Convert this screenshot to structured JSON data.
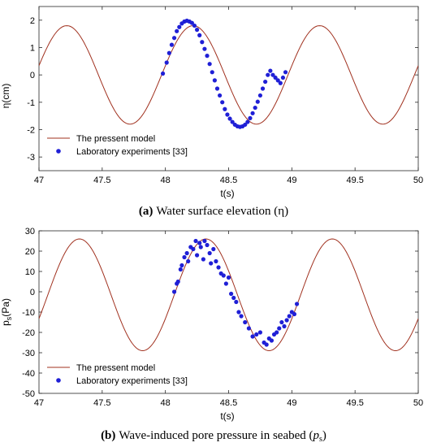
{
  "chart_data": [
    {
      "type": "line",
      "caption_prefix": "(a)",
      "caption_text": "Water surface elevation (η)",
      "xlabel": "t(s)",
      "ylabel": "η(cm)",
      "xlim": [
        47,
        50
      ],
      "ylim": [
        -3.5,
        2.5
      ],
      "xticks": [
        "47",
        "47.5",
        "48",
        "48.5",
        "49",
        "49.5",
        "50"
      ],
      "yticks": [
        "-3",
        "-2",
        "-1",
        "0",
        "1",
        "2"
      ],
      "xtick_values": [
        47,
        47.5,
        48,
        48.5,
        49,
        49.5,
        50
      ],
      "ytick_values": [
        -3,
        -2,
        -1,
        0,
        1,
        2
      ],
      "legend_placement": "bottom-left",
      "series": [
        {
          "name": "The pressent model",
          "kind": "line",
          "color": "#a0301e",
          "model": {
            "mean": 0.0,
            "amplitude": 1.8,
            "period": 1.0,
            "crest_time": 47.22
          }
        },
        {
          "name": "Laboratory experiments [33]",
          "kind": "scatter",
          "color": "#1f1fd6",
          "x": [
            47.98,
            48.01,
            48.03,
            48.05,
            48.07,
            48.09,
            48.11,
            48.13,
            48.15,
            48.17,
            48.19,
            48.21,
            48.23,
            48.25,
            48.27,
            48.29,
            48.31,
            48.33,
            48.35,
            48.37,
            48.39,
            48.41,
            48.43,
            48.45,
            48.47,
            48.49,
            48.51,
            48.53,
            48.55,
            48.57,
            48.59,
            48.61,
            48.63,
            48.65,
            48.67,
            48.69,
            48.71,
            48.73,
            48.75,
            48.77,
            48.79,
            48.81,
            48.83,
            48.85,
            48.87,
            48.89,
            48.91,
            48.93,
            48.95
          ],
          "y": [
            0.05,
            0.45,
            0.8,
            1.1,
            1.35,
            1.6,
            1.75,
            1.88,
            1.95,
            1.98,
            1.95,
            1.9,
            1.8,
            1.65,
            1.45,
            1.2,
            0.95,
            0.7,
            0.4,
            0.1,
            -0.2,
            -0.5,
            -0.75,
            -1.0,
            -1.25,
            -1.45,
            -1.6,
            -1.72,
            -1.82,
            -1.88,
            -1.9,
            -1.88,
            -1.82,
            -1.72,
            -1.58,
            -1.4,
            -1.2,
            -0.98,
            -0.75,
            -0.5,
            -0.25,
            0.0,
            0.15,
            0.0,
            -0.1,
            -0.2,
            -0.3,
            -0.1,
            0.1
          ]
        }
      ]
    },
    {
      "type": "line",
      "caption_prefix": "(b)",
      "caption_text": "Wave-induced pore pressure in seabed (",
      "caption_var": "p",
      "caption_sub": "s",
      "caption_close": ")",
      "xlabel": "t(s)",
      "ylabel": "p",
      "ylabel_sub": "s",
      "ylabel_unit": "(Pa)",
      "xlim": [
        47,
        50
      ],
      "ylim": [
        -50,
        30
      ],
      "xticks": [
        "47",
        "47.5",
        "48",
        "48.5",
        "49",
        "49.5",
        "50"
      ],
      "yticks": [
        "-50",
        "-40",
        "-30",
        "-20",
        "-10",
        "0",
        "10",
        "20",
        "30"
      ],
      "xtick_values": [
        47,
        47.5,
        48,
        48.5,
        49,
        49.5,
        50
      ],
      "ytick_values": [
        -50,
        -40,
        -30,
        -20,
        -10,
        0,
        10,
        20,
        30
      ],
      "legend_placement": "bottom-left",
      "series": [
        {
          "name": "The pressent model",
          "kind": "line",
          "color": "#a0301e",
          "model": {
            "mean": -1.5,
            "amplitude": 27.5,
            "period": 1.0,
            "crest_time": 47.32
          }
        },
        {
          "name": "Laboratory experiments [33]",
          "kind": "scatter",
          "color": "#1f1fd6",
          "x": [
            48.07,
            48.09,
            48.1,
            48.12,
            48.13,
            48.15,
            48.17,
            48.18,
            48.2,
            48.22,
            48.24,
            48.25,
            48.27,
            48.28,
            48.3,
            48.31,
            48.33,
            48.35,
            48.36,
            48.38,
            48.4,
            48.42,
            48.44,
            48.46,
            48.48,
            48.5,
            48.52,
            48.54,
            48.56,
            48.58,
            48.6,
            48.63,
            48.66,
            48.69,
            48.72,
            48.75,
            48.78,
            48.8,
            48.82,
            48.84,
            48.86,
            48.88,
            48.9,
            48.92,
            48.94,
            48.96,
            48.98,
            49.0,
            49.02,
            49.04
          ],
          "y": [
            0,
            4,
            5,
            11,
            13,
            17,
            19,
            15,
            22,
            21,
            25,
            18,
            24,
            22,
            16,
            25,
            23,
            19,
            14,
            21,
            15,
            12,
            9,
            8,
            4,
            7,
            -1,
            -3,
            -5,
            -10,
            -12,
            -15,
            -18,
            -22,
            -21,
            -20,
            -25,
            -26,
            -23,
            -24,
            -21,
            -20,
            -18,
            -15,
            -17,
            -14,
            -12,
            -10,
            -11,
            -6
          ]
        }
      ]
    }
  ]
}
